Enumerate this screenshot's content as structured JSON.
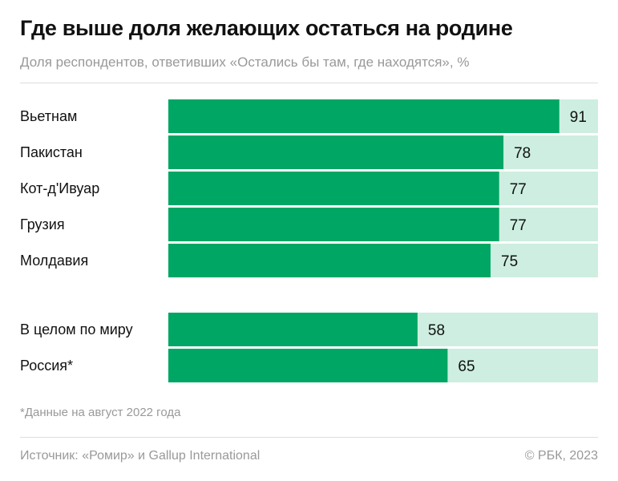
{
  "chart_data": {
    "type": "bar",
    "orientation": "horizontal",
    "title": "Где выше доля желающих остаться на родине",
    "subtitle": "Доля респондентов, ответивших «Остались бы там, где находятся», %",
    "groups": [
      {
        "categories": [
          "Вьетнам",
          "Пакистан",
          "Кот-д'Ивуар",
          "Грузия",
          "Молдавия"
        ],
        "values": [
          91,
          78,
          77,
          77,
          75
        ]
      },
      {
        "categories": [
          "В целом по миру",
          "Россия*"
        ],
        "values": [
          58,
          65
        ]
      }
    ],
    "xlim": [
      0,
      100
    ],
    "colors": {
      "bar": "#00a664",
      "track": "#cdeee0"
    },
    "footnote": "*Данные на август 2022 года",
    "source": "Источник: «Ромир» и Gallup International",
    "copyright": "© РБК, 2023"
  }
}
